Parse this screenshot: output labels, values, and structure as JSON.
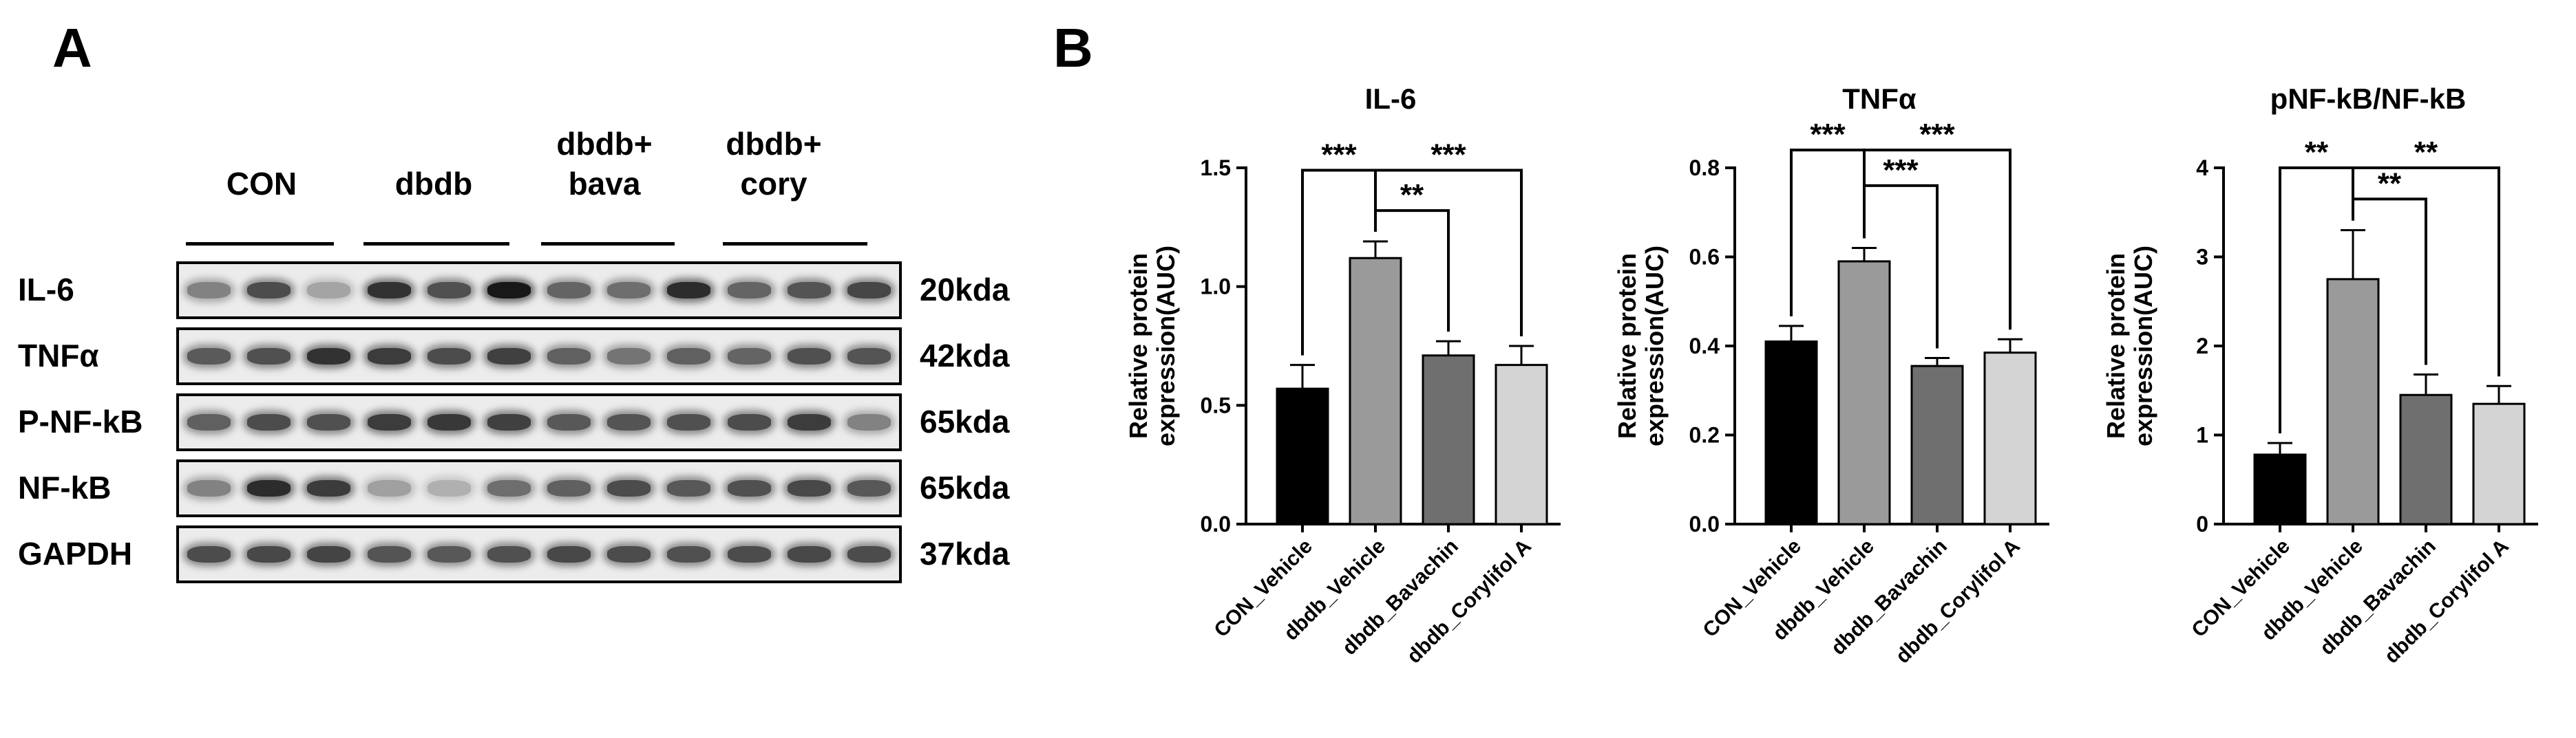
{
  "panel_labels": {
    "a": "A",
    "b": "B"
  },
  "blot": {
    "groups": [
      {
        "line1": "CON",
        "line2": ""
      },
      {
        "line1": "dbdb",
        "line2": ""
      },
      {
        "line1": "dbdb+",
        "line2": "bava"
      },
      {
        "line1": "dbdb+",
        "line2": "cory"
      }
    ],
    "rows": [
      {
        "label": "IL-6",
        "kda": "20kda",
        "intensities": [
          0.45,
          0.72,
          0.28,
          0.85,
          0.7,
          0.98,
          0.6,
          0.55,
          0.88,
          0.6,
          0.68,
          0.75
        ]
      },
      {
        "label": "TNFα",
        "kda": "42kda",
        "intensities": [
          0.65,
          0.7,
          0.85,
          0.8,
          0.72,
          0.78,
          0.62,
          0.52,
          0.62,
          0.6,
          0.7,
          0.68
        ]
      },
      {
        "label": "P-NF-kB",
        "kda": "65kda",
        "intensities": [
          0.62,
          0.72,
          0.7,
          0.8,
          0.82,
          0.78,
          0.66,
          0.68,
          0.7,
          0.72,
          0.8,
          0.45
        ]
      },
      {
        "label": "NF-kB",
        "kda": "65kda",
        "intensities": [
          0.45,
          0.88,
          0.8,
          0.3,
          0.22,
          0.55,
          0.62,
          0.72,
          0.66,
          0.7,
          0.74,
          0.66
        ]
      },
      {
        "label": "GAPDH",
        "kda": "37kda",
        "intensities": [
          0.72,
          0.74,
          0.76,
          0.68,
          0.66,
          0.7,
          0.74,
          0.72,
          0.7,
          0.72,
          0.74,
          0.72
        ]
      }
    ]
  },
  "chart_data": [
    {
      "type": "bar",
      "title": "IL-6",
      "ylabel_line1": "Relative protein",
      "ylabel_line2": "expression(AUC)",
      "categories": [
        "CON_Vehicle",
        "dbdb_Vehicle",
        "dbdb_Bavachin",
        "dbdb_Corylifol A"
      ],
      "values": [
        0.57,
        1.12,
        0.71,
        0.67
      ],
      "errors": [
        0.1,
        0.07,
        0.06,
        0.08
      ],
      "bar_colors": [
        "#000000",
        "#9a9a9a",
        "#6f6f6f",
        "#d4d4d4"
      ],
      "ylim": [
        0,
        1.5
      ],
      "yticks": [
        0.0,
        0.5,
        1.0,
        1.5
      ],
      "ytick_labels": [
        "0.0",
        "0.5",
        "1.0",
        "1.5"
      ],
      "significance": [
        {
          "from": 0,
          "to": 1,
          "label": "***",
          "level": 1.49
        },
        {
          "from": 1,
          "to": 2,
          "label": "**",
          "level": 1.32
        },
        {
          "from": 1,
          "to": 3,
          "label": "***",
          "level": 1.49
        }
      ]
    },
    {
      "type": "bar",
      "title": "TNFα",
      "ylabel_line1": "Relative protein",
      "ylabel_line2": "expression(AUC)",
      "categories": [
        "CON_Vehicle",
        "dbdb_Vehicle",
        "dbdb_Bavachin",
        "dbdb_Corylifol A"
      ],
      "values": [
        0.41,
        0.59,
        0.355,
        0.385
      ],
      "errors": [
        0.035,
        0.03,
        0.018,
        0.03
      ],
      "bar_colors": [
        "#000000",
        "#9a9a9a",
        "#6f6f6f",
        "#d4d4d4"
      ],
      "ylim": [
        0,
        0.8
      ],
      "yticks": [
        0.0,
        0.2,
        0.4,
        0.6,
        0.8
      ],
      "ytick_labels": [
        "0.0",
        "0.2",
        "0.4",
        "0.6",
        "0.8"
      ],
      "significance": [
        {
          "from": 0,
          "to": 1,
          "label": "***",
          "level": 0.84
        },
        {
          "from": 1,
          "to": 2,
          "label": "***",
          "level": 0.76
        },
        {
          "from": 1,
          "to": 3,
          "label": "***",
          "level": 0.84
        }
      ]
    },
    {
      "type": "bar",
      "title": "pNF-kB/NF-kB",
      "ylabel_line1": "Relative protein",
      "ylabel_line2": "expression(AUC)",
      "categories": [
        "CON_Vehicle",
        "dbdb_Vehicle",
        "dbdb_Bavachin",
        "dbdb_Corylifol A"
      ],
      "values": [
        0.78,
        2.75,
        1.45,
        1.35
      ],
      "errors": [
        0.13,
        0.55,
        0.23,
        0.2
      ],
      "bar_colors": [
        "#000000",
        "#9a9a9a",
        "#6f6f6f",
        "#d4d4d4"
      ],
      "ylim": [
        0,
        4
      ],
      "yticks": [
        0,
        1,
        2,
        3,
        4
      ],
      "ytick_labels": [
        "0",
        "1",
        "2",
        "3",
        "4"
      ],
      "significance": [
        {
          "from": 0,
          "to": 1,
          "label": "**",
          "level": 4.0
        },
        {
          "from": 1,
          "to": 2,
          "label": "**",
          "level": 3.65
        },
        {
          "from": 1,
          "to": 3,
          "label": "**",
          "level": 4.0
        }
      ]
    }
  ]
}
